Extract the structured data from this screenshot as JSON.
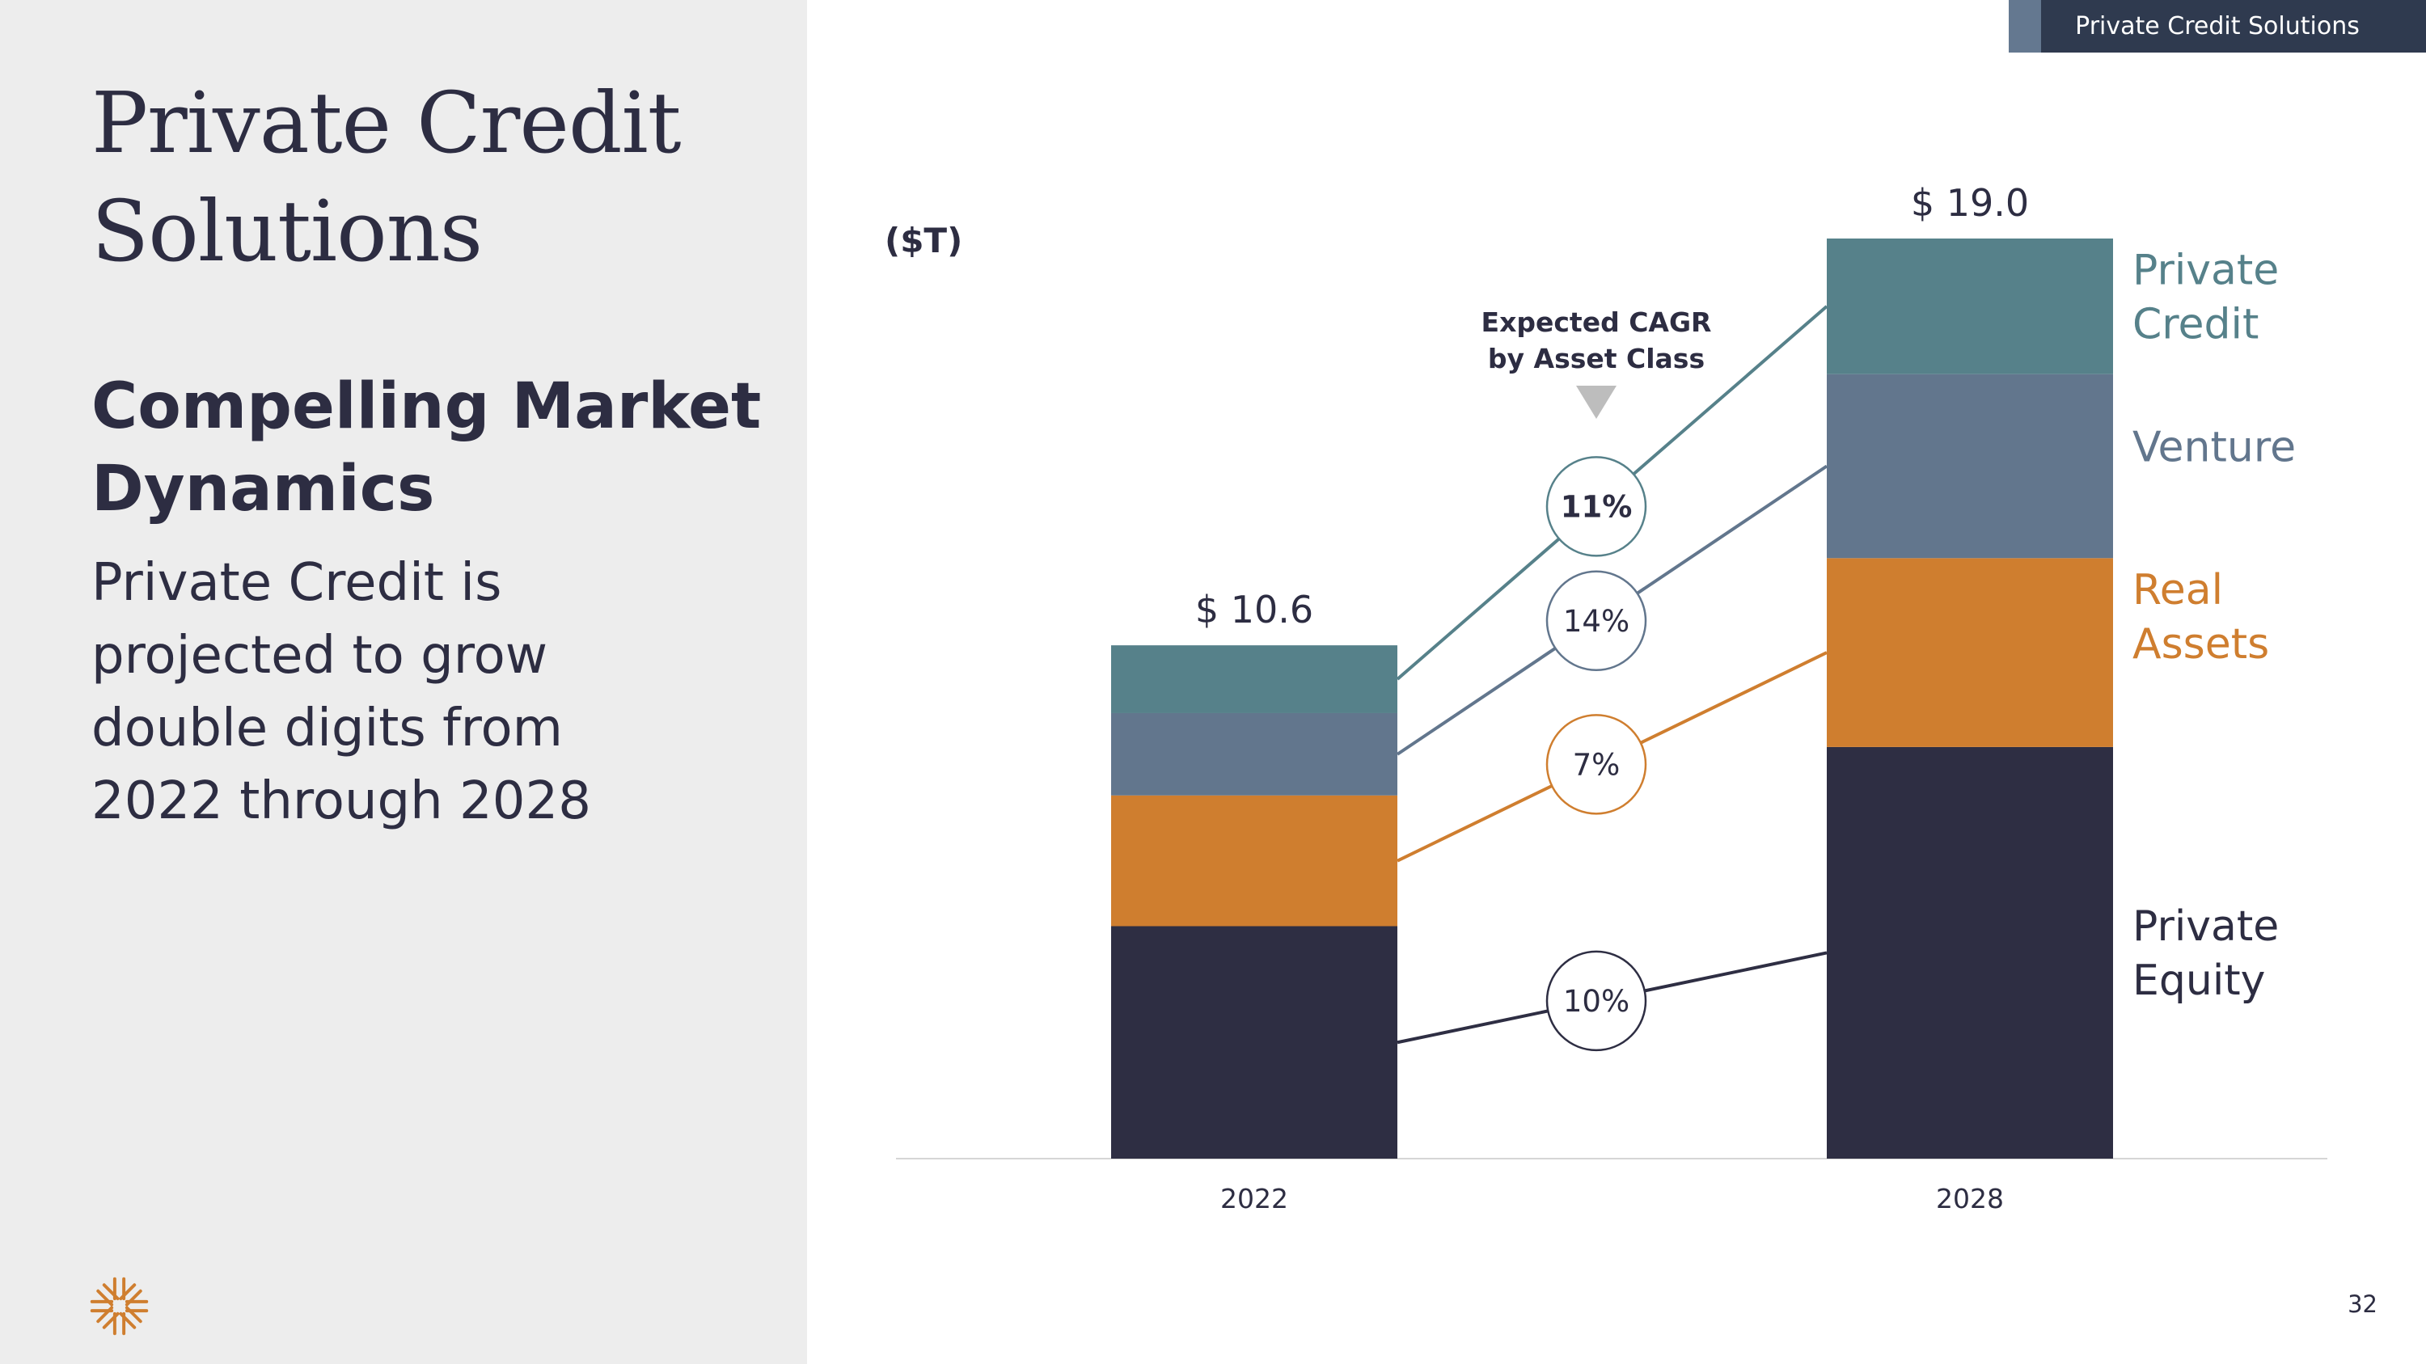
{
  "header": {
    "tag_label": "Private Credit Solutions"
  },
  "left": {
    "title_line1": "Private Credit",
    "title_line2": "Solutions",
    "subtitle_line1": "Compelling Market",
    "subtitle_line2": "Dynamics",
    "body_lines": [
      "Private Credit is",
      "projected to grow",
      "double digits from",
      "2022 through 2028"
    ]
  },
  "footer": {
    "page_number": "32"
  },
  "colors": {
    "private_credit": "#56818a",
    "venture": "#62768d",
    "real_assets": "#cf7e2f",
    "private_equity": "#2e2e43",
    "panel": "#ededed"
  },
  "chart_data": {
    "type": "bar",
    "stacked": true,
    "unit_label": "($T)",
    "categories": [
      "2022",
      "2028"
    ],
    "totals": [
      "$ 10.6",
      "$ 19.0"
    ],
    "series": [
      {
        "name": "Private Equity",
        "label_lines": [
          "Private",
          "Equity"
        ],
        "color": "#2e2e43",
        "values": [
          4.8,
          8.5
        ],
        "cagr": "10%",
        "cagr_bold": false
      },
      {
        "name": "Real Assets",
        "label_lines": [
          "Real",
          "Assets"
        ],
        "color": "#cf7e2f",
        "values": [
          2.7,
          3.9
        ],
        "cagr": "7%",
        "cagr_bold": false
      },
      {
        "name": "Venture",
        "label_lines": [
          "Venture"
        ],
        "color": "#62768d",
        "values": [
          1.7,
          3.8
        ],
        "cagr": "14%",
        "cagr_bold": false
      },
      {
        "name": "Private Credit",
        "label_lines": [
          "Private",
          "Credit"
        ],
        "color": "#56818a",
        "values": [
          1.4,
          2.8
        ],
        "cagr": "11%",
        "cagr_bold": true
      }
    ],
    "cagr_title_lines": [
      "Expected CAGR",
      "by Asset Class"
    ],
    "ylim": [
      0,
      19.0
    ]
  }
}
